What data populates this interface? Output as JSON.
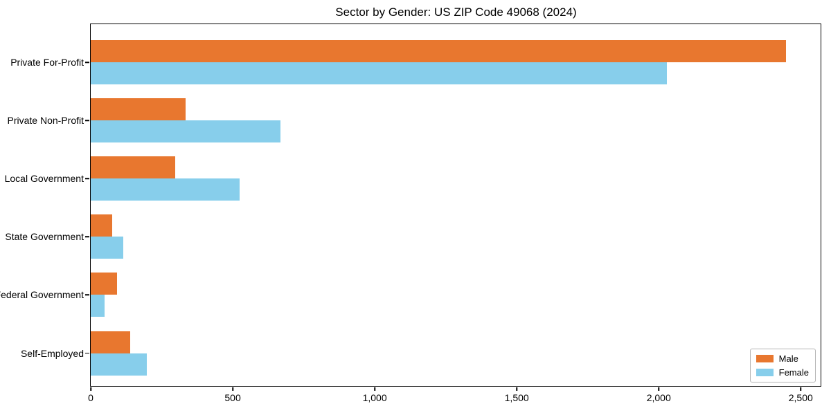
{
  "chart_data": {
    "type": "bar",
    "orientation": "horizontal",
    "title": "Sector by Gender: US ZIP Code 49068 (2024)",
    "categories": [
      "Private For-Profit",
      "Private Non-Profit",
      "Local Government",
      "State Government",
      "Federal Government",
      "Self-Employed"
    ],
    "series": [
      {
        "name": "Male",
        "color": "#E8772F",
        "values": [
          2447,
          335,
          297,
          76,
          93,
          138
        ]
      },
      {
        "name": "Female",
        "color": "#87CEEB",
        "values": [
          2028,
          667,
          524,
          114,
          49,
          198
        ]
      }
    ],
    "xlim": [
      0,
      2570
    ],
    "xticks": [
      {
        "value": 0,
        "label": "0"
      },
      {
        "value": 500,
        "label": "500"
      },
      {
        "value": 1000,
        "label": "1,000"
      },
      {
        "value": 1500,
        "label": "1,500"
      },
      {
        "value": 2000,
        "label": "2,000"
      },
      {
        "value": 2500,
        "label": "2,500"
      }
    ],
    "legend": {
      "position": "lower right"
    },
    "grid": false,
    "background_color": "#ffffff",
    "spine_color": "#000000"
  }
}
